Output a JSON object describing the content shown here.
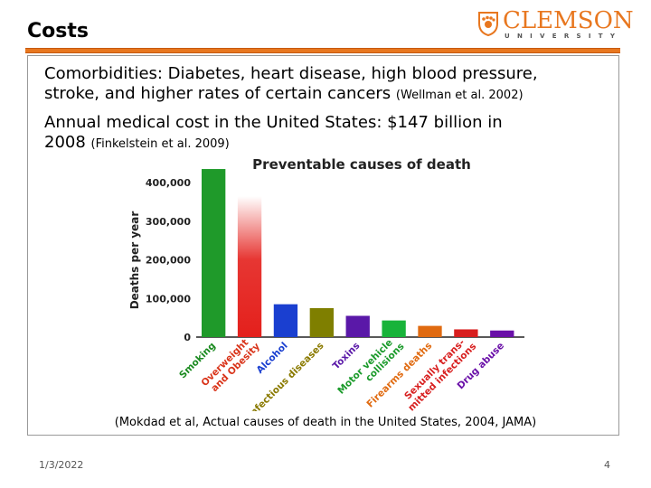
{
  "slide": {
    "title": "Costs",
    "bullets": [
      {
        "line1": "Comorbidities:  Diabetes, heart disease, high blood pressure,",
        "line2": "stroke, and higher rates of certain cancers ",
        "cite": "(Wellman et al. 2002)"
      },
      {
        "line1": "Annual medical cost in the United States:  $147 billion in",
        "line2": "2008 ",
        "cite": "(Finkelstein et al. 2009)"
      }
    ],
    "source": "(Mokdad et al, Actual causes of death in the United States, 2004, JAMA)",
    "footer_date": "1/3/2022",
    "page_number": "4"
  },
  "logo": {
    "word": "CLEMSON",
    "sub": "UNIVERSITY",
    "color": "#e8771f"
  },
  "chart_data": {
    "type": "bar",
    "title": "Preventable causes of death",
    "ylabel": "Deaths per year",
    "xlabel": "",
    "ylim": [
      0,
      400000
    ],
    "yticks": [
      "0",
      "100,000",
      "200,000",
      "300,000",
      "400,000"
    ],
    "categories": [
      "Smoking",
      "Overweight and Obesity",
      "Alcohol",
      "Infectious diseases",
      "Toxins",
      "Motor vehicle collisions",
      "Firearms deaths",
      "Sexually trans-mitted infections",
      "Drug abuse"
    ],
    "category_lines": [
      [
        "Smoking"
      ],
      [
        "Overweight",
        "and Obesity"
      ],
      [
        "Alcohol"
      ],
      [
        "Infectious diseases"
      ],
      [
        "Toxins"
      ],
      [
        "Motor vehicle",
        "collisions"
      ],
      [
        "Firearms deaths"
      ],
      [
        "Sexually trans-",
        "mitted infections"
      ],
      [
        "Drug abuse"
      ]
    ],
    "values": [
      435000,
      365000,
      85000,
      75000,
      55000,
      43000,
      29000,
      20000,
      17000
    ],
    "colors": [
      "#1f9a2a",
      "#e4201c",
      "#1a3fd0",
      "#7f7f00",
      "#5a18a8",
      "#18b33a",
      "#e06a10",
      "#d81f1f",
      "#6a10a8"
    ],
    "label_colors": [
      "#1a8a1f",
      "#d9341a",
      "#1a3fd0",
      "#8a7a00",
      "#5a18a8",
      "#1a9a2a",
      "#e06a10",
      "#d81f1f",
      "#6a10a8"
    ]
  }
}
